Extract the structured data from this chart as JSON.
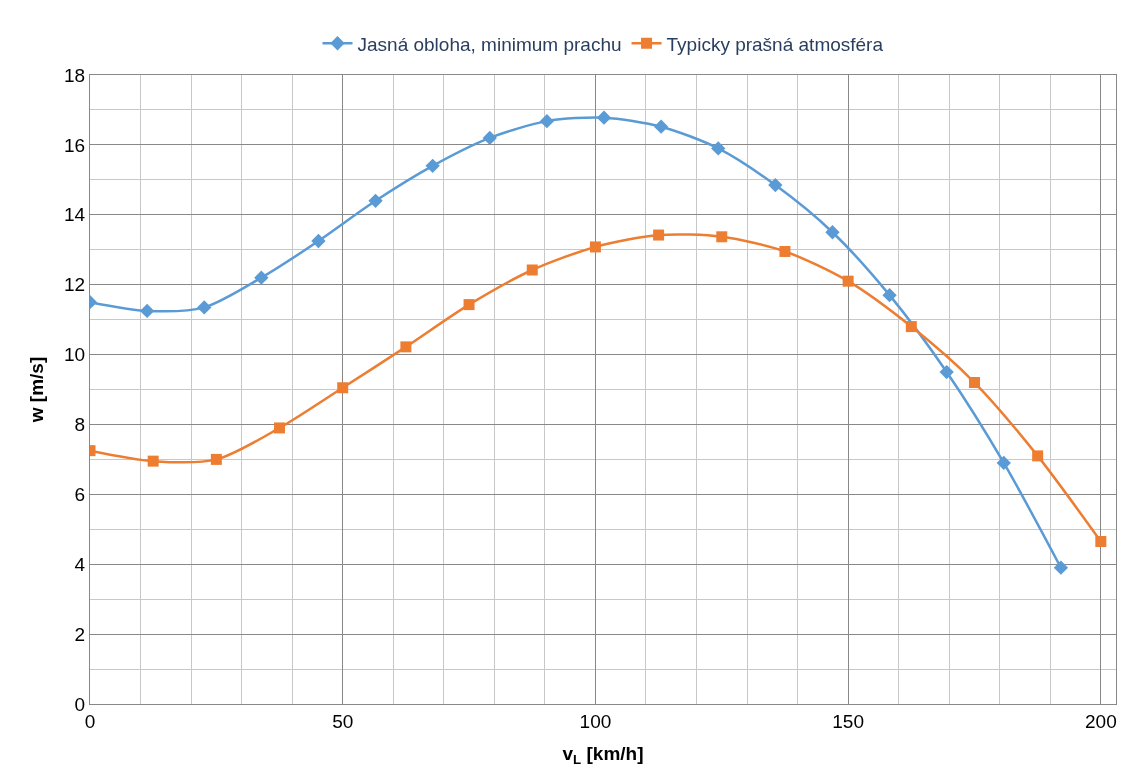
{
  "chart_data": {
    "type": "line",
    "xlabel": "v$_{L}$ [km/h]",
    "ylabel": "w [m/s]",
    "xlim": [
      0,
      203
    ],
    "ylim": [
      0,
      18
    ],
    "xticks": [
      0,
      50,
      100,
      150,
      200
    ],
    "yticks": [
      0,
      2,
      4,
      6,
      8,
      10,
      12,
      14,
      16,
      18
    ],
    "grid": true,
    "legend": "top",
    "line_style": "solid",
    "series": [
      {
        "name": "Jasná obloha, minimum prachu",
        "color": "#5b9bd5",
        "marker": "diamond",
        "x": [
          0,
          11.3,
          22.6,
          33.9,
          45.2,
          56.5,
          67.8,
          79.1,
          90.4,
          101.7,
          113,
          124.3,
          135.6,
          146.9,
          158.2,
          169.5,
          180.8,
          192.1
        ],
        "values": [
          11.5,
          11.25,
          11.35,
          12.2,
          13.25,
          14.4,
          15.4,
          16.2,
          16.68,
          16.78,
          16.52,
          15.9,
          14.85,
          13.5,
          11.7,
          9.5,
          6.9,
          3.9
        ]
      },
      {
        "name": "Typicky prašná atmosféra",
        "color": "#ed7d31",
        "marker": "square",
        "x": [
          0,
          12.5,
          25,
          37.5,
          50,
          62.5,
          75,
          87.5,
          100,
          112.5,
          125,
          137.5,
          150,
          162.5,
          175,
          187.5,
          200
        ],
        "values": [
          7.25,
          6.95,
          7.0,
          7.9,
          9.05,
          10.22,
          11.43,
          12.42,
          13.08,
          13.42,
          13.37,
          12.95,
          12.1,
          10.8,
          9.2,
          7.1,
          4.65
        ]
      }
    ]
  }
}
